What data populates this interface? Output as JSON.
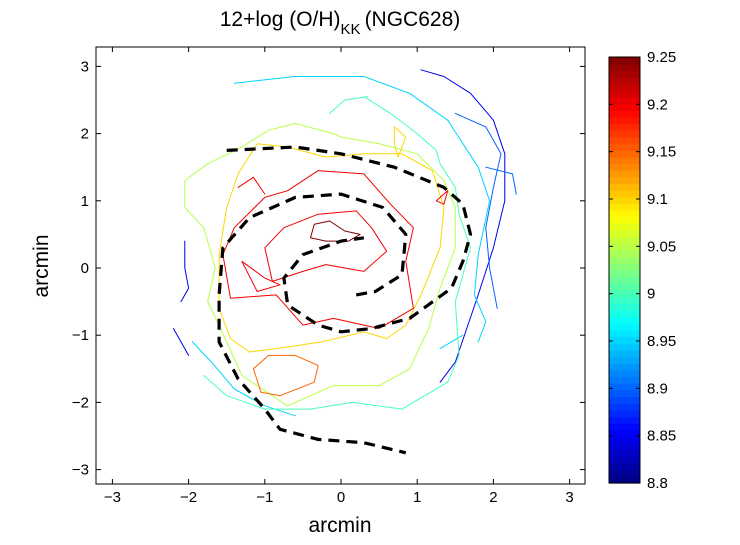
{
  "chart_data": {
    "type": "contour",
    "title_main": "12+log (O/H)",
    "title_sub": "KK",
    "title_suffix": "(NGC628)",
    "xlabel": "arcmin",
    "ylabel": "arcmin",
    "xlim": [
      -3.2,
      3.2
    ],
    "ylim": [
      -3.2,
      3.2
    ],
    "xticks": [
      -3,
      -2,
      -1,
      0,
      1,
      2,
      3
    ],
    "yticks": [
      -3,
      -2,
      -1,
      0,
      1,
      2,
      3
    ],
    "colorbar": {
      "range": [
        8.8,
        9.25
      ],
      "ticks": [
        8.8,
        8.85,
        8.9,
        8.95,
        9.0,
        9.05,
        9.1,
        9.15,
        9.2,
        9.25
      ],
      "tick_labels": [
        "8.8",
        "8.85",
        "8.9",
        "8.95",
        "9",
        "9.05",
        "9.1",
        "9.15",
        "9.2",
        "9.25"
      ]
    },
    "contours": [
      {
        "level": 8.85,
        "points": [
          [
            1.05,
            2.95
          ],
          [
            1.35,
            2.85
          ],
          [
            1.7,
            2.6
          ],
          [
            2.0,
            2.2
          ],
          [
            2.15,
            1.7
          ],
          [
            2.15,
            1.0
          ],
          [
            2.0,
            0.3
          ],
          [
            1.8,
            -0.4
          ],
          [
            1.5,
            -1.4
          ],
          [
            1.3,
            -1.7
          ]
        ]
      },
      {
        "level": 8.85,
        "points": [
          [
            -2.05,
            0.4
          ],
          [
            -2.05,
            0.0
          ],
          [
            -2.0,
            -0.3
          ],
          [
            -2.1,
            -0.5
          ]
        ]
      },
      {
        "level": 8.85,
        "points": [
          [
            -2.2,
            -0.9
          ],
          [
            -2.1,
            -1.1
          ],
          [
            -2.0,
            -1.3
          ]
        ]
      },
      {
        "level": 8.9,
        "points": [
          [
            1.5,
            2.3
          ],
          [
            1.9,
            2.1
          ],
          [
            2.1,
            1.7
          ],
          [
            2.0,
            1.2
          ],
          [
            1.9,
            0.6
          ],
          [
            1.95,
            0.0
          ],
          [
            2.05,
            -0.6
          ]
        ]
      },
      {
        "level": 8.9,
        "points": [
          [
            1.9,
            1.5
          ],
          [
            2.25,
            1.4
          ],
          [
            2.3,
            1.1
          ]
        ]
      },
      {
        "level": 8.95,
        "points": [
          [
            -1.4,
            2.75
          ],
          [
            -0.6,
            2.85
          ],
          [
            0.3,
            2.85
          ],
          [
            0.9,
            2.6
          ],
          [
            1.4,
            2.2
          ],
          [
            1.8,
            1.5
          ],
          [
            1.95,
            1.0
          ],
          [
            1.8,
            0.2
          ],
          [
            1.75,
            -0.4
          ],
          [
            1.9,
            -0.8
          ],
          [
            1.8,
            -1.1
          ]
        ]
      },
      {
        "level": 8.95,
        "points": [
          [
            -1.95,
            -1.1
          ],
          [
            -1.7,
            -1.4
          ],
          [
            -1.4,
            -1.8
          ],
          [
            -1.0,
            -2.05
          ],
          [
            -0.6,
            -2.2
          ]
        ]
      },
      {
        "level": 8.95,
        "points": [
          [
            1.3,
            -1.2
          ],
          [
            1.6,
            -1.0
          ]
        ]
      },
      {
        "level": 9.0,
        "points": [
          [
            0.3,
            2.55
          ],
          [
            0.65,
            2.3
          ],
          [
            1.0,
            2.0
          ],
          [
            1.25,
            1.75
          ],
          [
            1.3,
            1.55
          ],
          [
            1.5,
            1.2
          ],
          [
            1.55,
            0.8
          ],
          [
            1.7,
            0.3
          ],
          [
            1.5,
            -0.5
          ],
          [
            1.55,
            -1.3
          ],
          [
            1.4,
            -1.7
          ],
          [
            0.8,
            -2.1
          ],
          [
            0.15,
            -2.0
          ],
          [
            -0.4,
            -2.1
          ],
          [
            -1.0,
            -2.1
          ],
          [
            -1.5,
            -1.9
          ],
          [
            -1.8,
            -1.6
          ]
        ]
      },
      {
        "level": 9.0,
        "points": [
          [
            -0.15,
            2.3
          ],
          [
            0.05,
            2.5
          ],
          [
            0.35,
            2.55
          ]
        ]
      },
      {
        "level": 9.05,
        "points": [
          [
            -0.1,
            2.0
          ],
          [
            -0.6,
            2.15
          ],
          [
            -0.95,
            2.05
          ],
          [
            -1.3,
            1.8
          ],
          [
            -1.75,
            1.55
          ],
          [
            -2.05,
            1.3
          ],
          [
            -2.05,
            0.9
          ],
          [
            -1.8,
            0.6
          ],
          [
            -1.65,
            0.0
          ],
          [
            -1.75,
            -0.5
          ],
          [
            -1.5,
            -1.1
          ],
          [
            -1.3,
            -1.6
          ],
          [
            -0.7,
            -2.05
          ],
          [
            -0.1,
            -1.75
          ],
          [
            0.5,
            -1.75
          ],
          [
            0.9,
            -1.5
          ],
          [
            1.15,
            -0.9
          ],
          [
            1.3,
            -0.3
          ],
          [
            1.5,
            0.3
          ],
          [
            1.5,
            0.9
          ],
          [
            1.35,
            1.3
          ],
          [
            1.0,
            1.7
          ],
          [
            0.5,
            1.85
          ],
          [
            0.0,
            1.95
          ],
          [
            -0.1,
            2.0
          ]
        ]
      },
      {
        "level": 9.1,
        "points": [
          [
            -1.1,
            1.85
          ],
          [
            -1.35,
            1.4
          ],
          [
            -1.5,
            0.9
          ],
          [
            -1.6,
            0.2
          ],
          [
            -1.6,
            -0.6
          ],
          [
            -1.45,
            -1.05
          ],
          [
            -1.2,
            -1.25
          ],
          [
            -0.85,
            -1.2
          ],
          [
            -0.25,
            -1.1
          ],
          [
            0.3,
            -0.95
          ],
          [
            0.6,
            -1.05
          ],
          [
            0.85,
            -0.85
          ],
          [
            1.05,
            -0.4
          ],
          [
            1.3,
            0.3
          ],
          [
            1.35,
            0.9
          ],
          [
            1.2,
            1.45
          ],
          [
            0.8,
            1.7
          ],
          [
            0.3,
            1.7
          ],
          [
            -0.2,
            1.65
          ],
          [
            -0.7,
            1.8
          ],
          [
            -1.1,
            1.85
          ]
        ]
      },
      {
        "level": 9.1,
        "points": [
          [
            0.7,
            2.1
          ],
          [
            0.7,
            1.85
          ],
          [
            0.75,
            1.65
          ],
          [
            0.85,
            1.95
          ],
          [
            0.7,
            2.1
          ]
        ]
      },
      {
        "level": 9.15,
        "points": [
          [
            -0.95,
            -1.3
          ],
          [
            -0.6,
            -1.3
          ],
          [
            -0.3,
            -1.45
          ],
          [
            -0.35,
            -1.7
          ],
          [
            -0.8,
            -1.9
          ],
          [
            -1.05,
            -1.85
          ],
          [
            -1.15,
            -1.5
          ],
          [
            -0.95,
            -1.3
          ]
        ]
      },
      {
        "level": 9.2,
        "points": [
          [
            -0.7,
            1.15
          ],
          [
            -0.3,
            1.45
          ],
          [
            0.3,
            1.4
          ],
          [
            0.65,
            0.95
          ],
          [
            0.95,
            0.6
          ],
          [
            0.85,
            0.1
          ],
          [
            0.95,
            -0.6
          ],
          [
            0.5,
            -0.9
          ],
          [
            -0.1,
            -0.75
          ],
          [
            -0.5,
            -0.85
          ],
          [
            -0.85,
            -0.4
          ],
          [
            -1.45,
            -0.45
          ],
          [
            -1.55,
            0.2
          ],
          [
            -1.4,
            0.6
          ],
          [
            -1.0,
            1.05
          ],
          [
            -0.7,
            1.15
          ]
        ]
      },
      {
        "level": 9.2,
        "points": [
          [
            -0.9,
            -0.2
          ],
          [
            -0.5,
            -0.05
          ],
          [
            -0.2,
            0.05
          ],
          [
            0.3,
            -0.05
          ],
          [
            0.6,
            0.25
          ],
          [
            0.4,
            0.6
          ],
          [
            0.2,
            0.85
          ],
          [
            -0.3,
            0.8
          ],
          [
            -0.75,
            0.6
          ],
          [
            -1.0,
            0.3
          ],
          [
            -0.9,
            -0.2
          ]
        ]
      },
      {
        "level": 9.2,
        "points": [
          [
            -1.3,
            0.1
          ],
          [
            -1.0,
            -0.15
          ],
          [
            -0.8,
            -0.25
          ],
          [
            -1.1,
            -0.35
          ],
          [
            -1.3,
            0.1
          ]
        ]
      },
      {
        "level": 9.2,
        "points": [
          [
            1.25,
            1.0
          ],
          [
            1.4,
            1.15
          ],
          [
            1.35,
            0.95
          ],
          [
            1.25,
            1.0
          ]
        ]
      },
      {
        "level": 9.2,
        "points": [
          [
            -1.35,
            1.2
          ],
          [
            -1.15,
            1.35
          ],
          [
            -1.0,
            1.1
          ]
        ]
      },
      {
        "level": 9.25,
        "points": [
          [
            -0.35,
            0.65
          ],
          [
            -0.15,
            0.7
          ],
          [
            0.05,
            0.55
          ],
          [
            0.25,
            0.5
          ],
          [
            0.1,
            0.4
          ],
          [
            -0.2,
            0.4
          ],
          [
            -0.4,
            0.45
          ],
          [
            -0.35,
            0.65
          ]
        ]
      }
    ],
    "spiral_arms": [
      {
        "name": "arm1",
        "points": [
          [
            -1.5,
            1.75
          ],
          [
            -0.6,
            1.8
          ],
          [
            0.0,
            1.7
          ],
          [
            0.7,
            1.5
          ],
          [
            1.35,
            1.2
          ],
          [
            1.6,
            0.95
          ],
          [
            1.7,
            0.5
          ],
          [
            1.6,
            0.1
          ],
          [
            1.45,
            -0.3
          ],
          [
            0.9,
            -0.75
          ],
          [
            0.4,
            -0.9
          ],
          [
            0.0,
            -0.95
          ],
          [
            -0.3,
            -0.85
          ],
          [
            -0.7,
            -0.55
          ],
          [
            -0.75,
            -0.15
          ],
          [
            -0.5,
            0.2
          ],
          [
            0.0,
            0.4
          ],
          [
            0.3,
            0.45
          ]
        ]
      },
      {
        "name": "arm2",
        "points": [
          [
            0.2,
            -0.4
          ],
          [
            0.45,
            -0.35
          ],
          [
            0.8,
            -0.1
          ],
          [
            0.85,
            0.5
          ],
          [
            0.55,
            0.9
          ],
          [
            0.0,
            1.1
          ],
          [
            -0.6,
            1.05
          ],
          [
            -1.2,
            0.75
          ],
          [
            -1.55,
            0.3
          ],
          [
            -1.6,
            -0.4
          ],
          [
            -1.6,
            -1.1
          ],
          [
            -1.35,
            -1.65
          ],
          [
            -1.0,
            -2.1
          ],
          [
            -0.8,
            -2.4
          ],
          [
            -0.3,
            -2.55
          ],
          [
            0.3,
            -2.6
          ],
          [
            0.85,
            -2.75
          ]
        ]
      }
    ]
  }
}
